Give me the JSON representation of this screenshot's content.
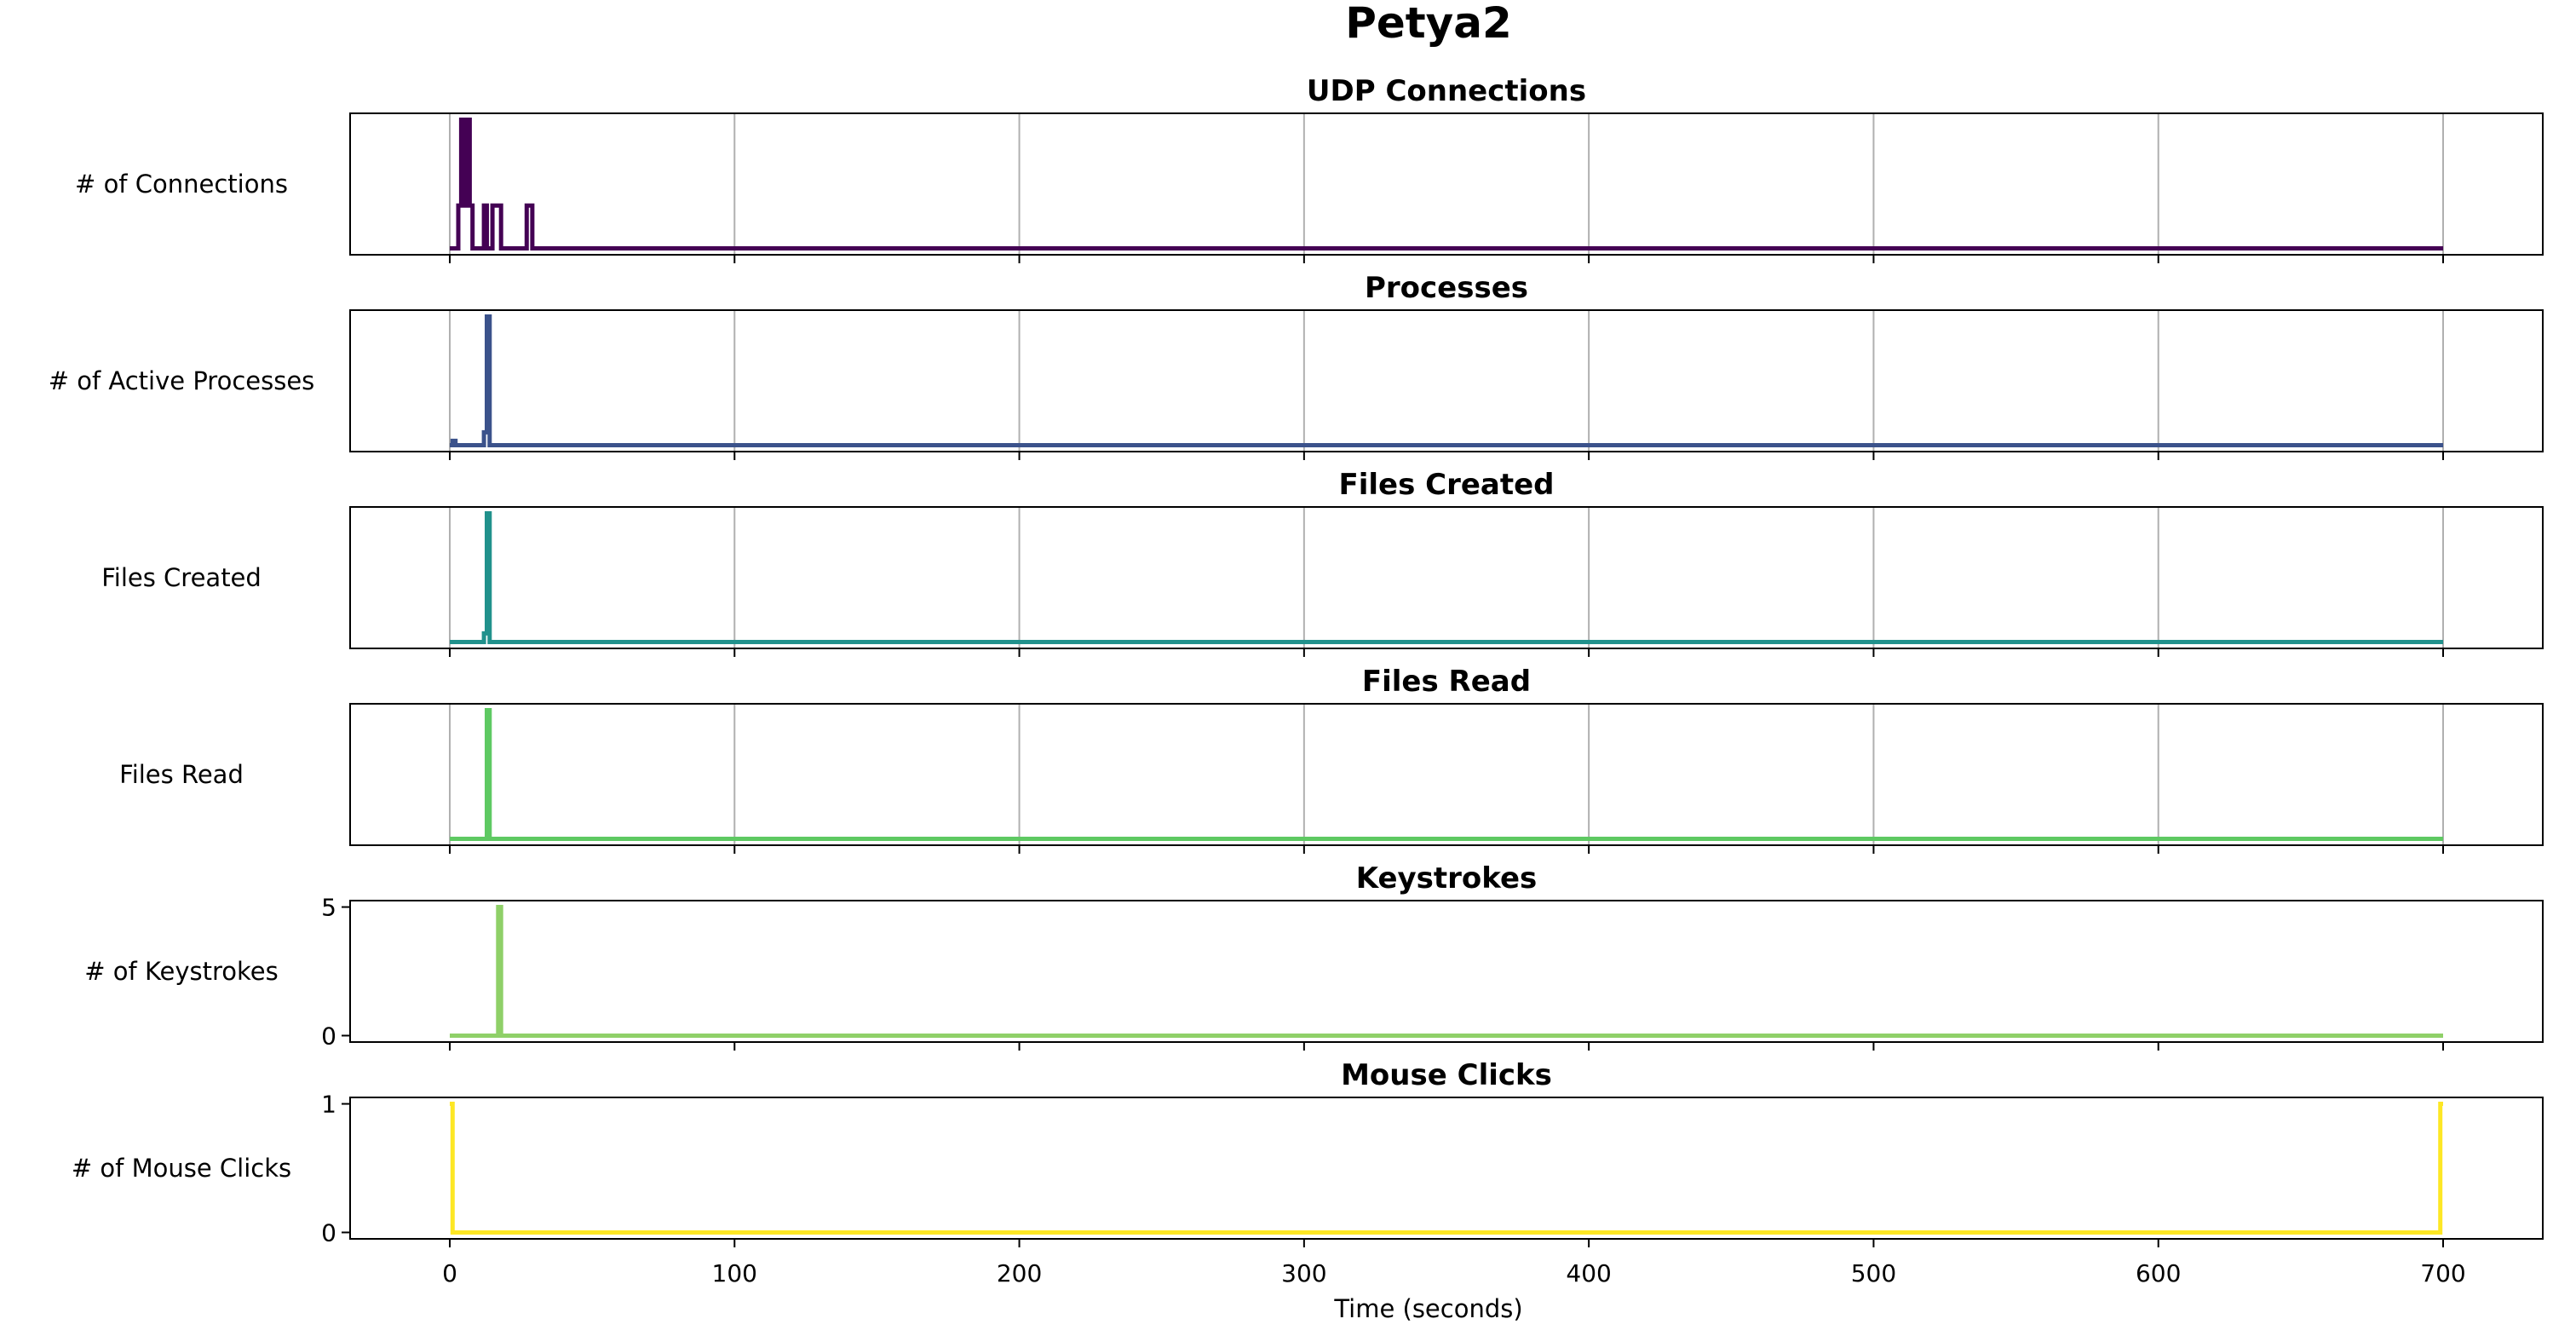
{
  "figure": {
    "title": "Petya2",
    "xlabel": "Time (seconds)",
    "x_ticks": [
      0,
      100,
      200,
      300,
      400,
      500,
      600,
      700
    ],
    "xlim": [
      -35,
      735
    ]
  },
  "chart_data": [
    {
      "type": "line",
      "title": "UDP Connections",
      "ylabel": "# of Connections",
      "color": "#440154",
      "yticks": [],
      "ylim": [
        -0.15,
        3.15
      ],
      "grid": true,
      "series": [
        {
          "x": [
            0,
            3,
            3,
            4,
            4,
            5,
            5,
            6,
            6,
            7,
            7,
            8,
            8,
            9,
            9,
            12,
            12,
            13,
            13,
            15,
            15,
            18,
            18,
            27,
            27,
            29,
            29,
            700
          ],
          "y": [
            0,
            0,
            1,
            1,
            3,
            3,
            1,
            1,
            3,
            3,
            1,
            1,
            0,
            0,
            0,
            0,
            1,
            1,
            0,
            0,
            1,
            1,
            0,
            0,
            1,
            1,
            0,
            0
          ]
        }
      ]
    },
    {
      "type": "line",
      "title": "Processes",
      "ylabel": "# of Active Processes",
      "color": "#3b528b",
      "yticks": [],
      "ylim": [
        -0.15,
        3.15
      ],
      "grid": true,
      "series": [
        {
          "x": [
            0,
            1,
            1,
            2,
            2,
            12,
            12,
            13,
            13,
            14,
            14,
            700
          ],
          "y": [
            0,
            0,
            0.1,
            0.1,
            0,
            0,
            0.3,
            0.3,
            3,
            3,
            0,
            0
          ]
        }
      ]
    },
    {
      "type": "line",
      "title": "Files Created",
      "ylabel": "Files Created",
      "color": "#21918c",
      "yticks": [],
      "ylim": [
        -0.15,
        3.15
      ],
      "grid": true,
      "series": [
        {
          "x": [
            0,
            12,
            12,
            13,
            13,
            14,
            14,
            700
          ],
          "y": [
            0,
            0,
            0.2,
            0.2,
            3,
            3,
            0,
            0
          ]
        }
      ]
    },
    {
      "type": "line",
      "title": "Files Read",
      "ylabel": "Files Read",
      "color": "#5ec962",
      "yticks": [],
      "ylim": [
        -0.15,
        3.15
      ],
      "grid": true,
      "series": [
        {
          "x": [
            0,
            13,
            13,
            14,
            14,
            700
          ],
          "y": [
            0,
            0,
            3,
            3,
            0,
            0
          ]
        }
      ]
    },
    {
      "type": "line",
      "title": "Keystrokes",
      "ylabel": "# of Keystrokes",
      "color": "#8fd068",
      "yticks": [
        0,
        5
      ],
      "ylim": [
        -0.25,
        5.25
      ],
      "grid": false,
      "series": [
        {
          "x": [
            0,
            17,
            17,
            18,
            18,
            700
          ],
          "y": [
            0,
            0,
            5,
            5,
            0,
            0
          ]
        }
      ]
    },
    {
      "type": "line",
      "title": "Mouse Clicks",
      "ylabel": "# of Mouse Clicks",
      "color": "#fde725",
      "yticks": [
        0,
        1
      ],
      "ylim": [
        -0.05,
        1.05
      ],
      "grid": false,
      "series": [
        {
          "x": [
            0,
            0,
            1,
            1,
            699,
            699,
            700,
            700
          ],
          "y": [
            1,
            1,
            1,
            0,
            0,
            1,
            1,
            1
          ]
        }
      ]
    }
  ]
}
